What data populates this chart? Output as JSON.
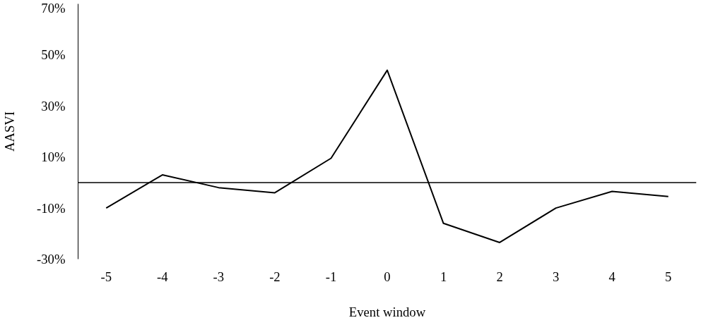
{
  "chart_data": {
    "type": "line",
    "xlabel": "Event window",
    "ylabel": "AASVI",
    "categories": [
      "-5",
      "-4",
      "-3",
      "-2",
      "-1",
      "0",
      "1",
      "2",
      "3",
      "4",
      "5"
    ],
    "series": [
      {
        "color": "#000000",
        "values": [
          -10,
          3,
          -2,
          -4,
          9.5,
          44,
          -16,
          -23.5,
          -10,
          -3.5,
          -5.5
        ]
      }
    ],
    "ylim": [
      -30,
      70
    ],
    "yticks": [
      {
        "value": -30,
        "label": "-30%"
      },
      {
        "value": -10,
        "label": "-10%"
      },
      {
        "value": 10,
        "label": "10%"
      },
      {
        "value": 30,
        "label": "30%"
      },
      {
        "value": 50,
        "label": "50%"
      },
      {
        "value": 70,
        "label": "70%"
      }
    ],
    "ref_lines": [
      {
        "axis": "y",
        "value": 0,
        "color": "#000000"
      }
    ],
    "grid": false,
    "marker": "none",
    "line_style": "solid"
  }
}
